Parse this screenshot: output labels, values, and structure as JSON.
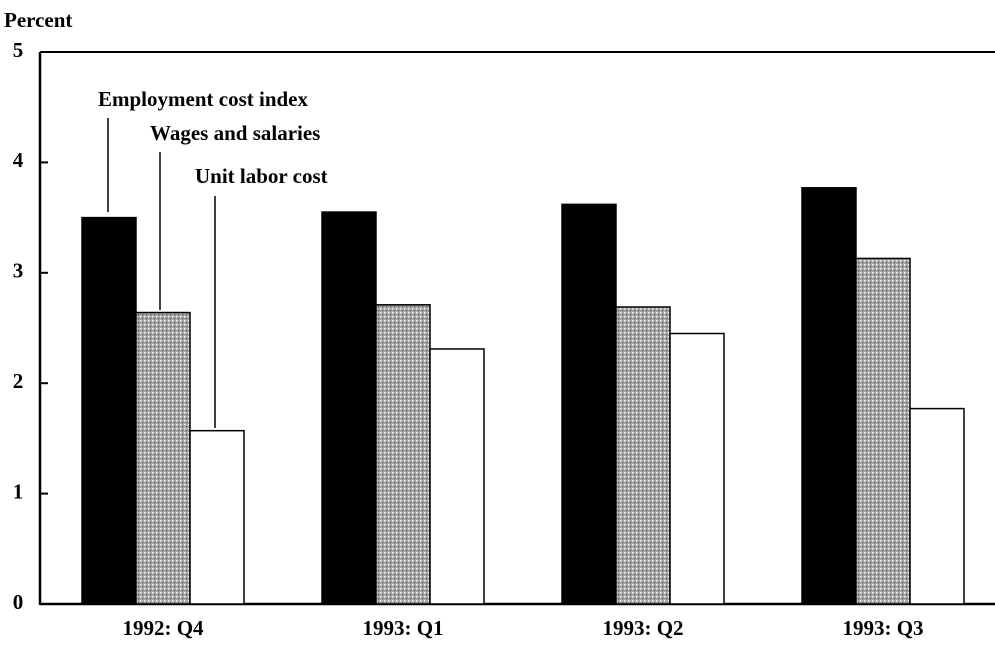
{
  "chart_data": {
    "type": "bar",
    "y_axis_label": "Percent",
    "categories": [
      "1992: Q4",
      "1993: Q1",
      "1993: Q2",
      "1993: Q3"
    ],
    "series": [
      {
        "name": "Employment cost index",
        "color": "#000000",
        "values": [
          3.5,
          3.55,
          3.62,
          3.77
        ]
      },
      {
        "name": "Wages and salaries",
        "color": "#a8a8a8",
        "values": [
          2.64,
          2.71,
          2.69,
          3.13
        ]
      },
      {
        "name": "Unit labor cost",
        "color": "#ffffff",
        "values": [
          1.57,
          2.31,
          2.45,
          1.77
        ]
      }
    ],
    "ylim": [
      0,
      5
    ],
    "yticks": [
      0,
      1,
      2,
      3,
      4,
      5
    ]
  }
}
